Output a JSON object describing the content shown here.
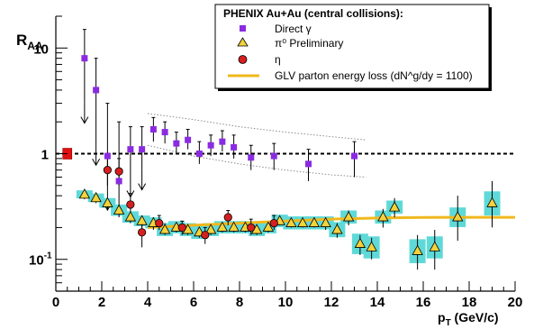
{
  "chart_data": {
    "type": "scatter",
    "title": "",
    "xlabel": "p_T (GeV/c)",
    "ylabel": "R_AA",
    "xlim": [
      0,
      20
    ],
    "ylim": [
      0.05,
      20
    ],
    "ylog": true,
    "grid": false,
    "legend_position": "top-right",
    "legend_title": "PHENIX Au+Au (central collisions):",
    "x_ticks": [
      "0",
      "2",
      "4",
      "6",
      "8",
      "10",
      "12",
      "14",
      "16",
      "18",
      "20"
    ],
    "y_ticks": [
      "10",
      "1",
      "10^-1"
    ],
    "reference_line": {
      "y": 1,
      "style": "dashed",
      "color": "#000000"
    },
    "normalization_box": {
      "x": 0.5,
      "y": 1,
      "color": "#e21010"
    },
    "series": [
      {
        "name": "Direct γ",
        "marker": "square",
        "color": "#8a2be2",
        "points": [
          {
            "x": 1.25,
            "y": 8.0,
            "lo": 3.0,
            "hi": 15.0,
            "arrow": true
          },
          {
            "x": 1.75,
            "y": 4.0,
            "lo": 1.2,
            "hi": 8.0,
            "arrow": true
          },
          {
            "x": 2.25,
            "y": 0.95,
            "lo": 0.45,
            "hi": 3.0,
            "arrow": true
          },
          {
            "x": 2.75,
            "y": 0.55,
            "lo": 0.3,
            "hi": 2.0
          },
          {
            "x": 3.25,
            "y": 1.1,
            "lo": 0.6,
            "hi": 1.8,
            "arrow": true
          },
          {
            "x": 3.75,
            "y": 1.1,
            "lo": 0.7,
            "hi": 1.8,
            "arrow": true
          },
          {
            "x": 4.25,
            "y": 1.7,
            "lo": 1.3,
            "hi": 2.2
          },
          {
            "x": 4.75,
            "y": 1.6,
            "lo": 1.25,
            "hi": 2.0
          },
          {
            "x": 5.25,
            "y": 1.25,
            "lo": 1.0,
            "hi": 1.6
          },
          {
            "x": 5.75,
            "y": 1.35,
            "lo": 1.1,
            "hi": 1.7
          },
          {
            "x": 6.25,
            "y": 1.0,
            "lo": 0.8,
            "hi": 1.3
          },
          {
            "x": 6.75,
            "y": 1.2,
            "lo": 0.95,
            "hi": 1.5
          },
          {
            "x": 7.25,
            "y": 1.3,
            "lo": 1.05,
            "hi": 1.65
          },
          {
            "x": 7.75,
            "y": 1.15,
            "lo": 0.9,
            "hi": 1.5
          },
          {
            "x": 8.5,
            "y": 0.92,
            "lo": 0.7,
            "hi": 1.2
          },
          {
            "x": 9.5,
            "y": 0.95,
            "lo": 0.7,
            "hi": 1.25
          },
          {
            "x": 11.0,
            "y": 0.8,
            "lo": 0.55,
            "hi": 1.1
          },
          {
            "x": 13.0,
            "y": 0.95,
            "lo": 0.6,
            "hi": 1.3
          }
        ]
      },
      {
        "name": "π⁰ Preliminary",
        "marker": "triangle",
        "color": "#f5d23a",
        "systematics_color": "#5fd9d8",
        "points": [
          {
            "x": 1.25,
            "y": 0.41,
            "lo": 0.37,
            "hi": 0.45,
            "sys": 0.04
          },
          {
            "x": 1.75,
            "y": 0.38,
            "lo": 0.34,
            "hi": 0.42,
            "sys": 0.04
          },
          {
            "x": 2.25,
            "y": 0.34,
            "lo": 0.3,
            "hi": 0.38,
            "sys": 0.04
          },
          {
            "x": 2.75,
            "y": 0.29,
            "lo": 0.25,
            "hi": 0.33,
            "sys": 0.04
          },
          {
            "x": 3.25,
            "y": 0.25,
            "lo": 0.22,
            "hi": 0.28,
            "sys": 0.035
          },
          {
            "x": 3.75,
            "y": 0.23,
            "lo": 0.2,
            "hi": 0.26,
            "sys": 0.03
          },
          {
            "x": 4.25,
            "y": 0.22,
            "lo": 0.19,
            "hi": 0.25,
            "sys": 0.03
          },
          {
            "x": 4.75,
            "y": 0.19,
            "lo": 0.17,
            "hi": 0.22,
            "sys": 0.03
          },
          {
            "x": 5.25,
            "y": 0.2,
            "lo": 0.18,
            "hi": 0.22,
            "sys": 0.03
          },
          {
            "x": 5.75,
            "y": 0.19,
            "lo": 0.17,
            "hi": 0.21,
            "sys": 0.03
          },
          {
            "x": 6.25,
            "y": 0.18,
            "lo": 0.16,
            "hi": 0.2,
            "sys": 0.03
          },
          {
            "x": 6.75,
            "y": 0.19,
            "lo": 0.17,
            "hi": 0.21,
            "sys": 0.03
          },
          {
            "x": 7.25,
            "y": 0.2,
            "lo": 0.18,
            "hi": 0.22,
            "sys": 0.03
          },
          {
            "x": 7.75,
            "y": 0.2,
            "lo": 0.18,
            "hi": 0.22,
            "sys": 0.03
          },
          {
            "x": 8.25,
            "y": 0.2,
            "lo": 0.18,
            "hi": 0.22,
            "sys": 0.03
          },
          {
            "x": 8.75,
            "y": 0.19,
            "lo": 0.17,
            "hi": 0.21,
            "sys": 0.03
          },
          {
            "x": 9.25,
            "y": 0.2,
            "lo": 0.18,
            "hi": 0.22,
            "sys": 0.03
          },
          {
            "x": 9.75,
            "y": 0.23,
            "lo": 0.21,
            "hi": 0.25,
            "sys": 0.035
          },
          {
            "x": 10.25,
            "y": 0.22,
            "lo": 0.2,
            "hi": 0.24,
            "sys": 0.035
          },
          {
            "x": 10.75,
            "y": 0.22,
            "lo": 0.2,
            "hi": 0.24,
            "sys": 0.035
          },
          {
            "x": 11.25,
            "y": 0.22,
            "lo": 0.2,
            "hi": 0.25,
            "sys": 0.035
          },
          {
            "x": 11.75,
            "y": 0.22,
            "lo": 0.19,
            "hi": 0.25,
            "sys": 0.035
          },
          {
            "x": 12.25,
            "y": 0.19,
            "lo": 0.16,
            "hi": 0.22,
            "sys": 0.035
          },
          {
            "x": 12.75,
            "y": 0.25,
            "lo": 0.21,
            "hi": 0.29,
            "sys": 0.04
          },
          {
            "x": 13.25,
            "y": 0.14,
            "lo": 0.11,
            "hi": 0.17,
            "sys": 0.035
          },
          {
            "x": 13.75,
            "y": 0.13,
            "lo": 0.1,
            "hi": 0.16,
            "sys": 0.035
          },
          {
            "x": 14.25,
            "y": 0.25,
            "lo": 0.2,
            "hi": 0.3,
            "sys": 0.04
          },
          {
            "x": 14.75,
            "y": 0.31,
            "lo": 0.25,
            "hi": 0.38,
            "sys": 0.05
          },
          {
            "x": 15.75,
            "y": 0.12,
            "lo": 0.08,
            "hi": 0.17,
            "sys": 0.035
          },
          {
            "x": 16.5,
            "y": 0.13,
            "lo": 0.08,
            "hi": 0.19,
            "sys": 0.035
          },
          {
            "x": 17.5,
            "y": 0.25,
            "lo": 0.15,
            "hi": 0.4,
            "sys": 0.06
          },
          {
            "x": 19.0,
            "y": 0.34,
            "lo": 0.2,
            "hi": 0.55,
            "sys": 0.1
          }
        ]
      },
      {
        "name": "η",
        "marker": "circle",
        "color": "#d61f1f",
        "points": [
          {
            "x": 2.25,
            "y": 0.7,
            "lo": 0.5,
            "hi": 0.95
          },
          {
            "x": 2.75,
            "y": 0.68,
            "lo": 0.5,
            "hi": 0.9
          },
          {
            "x": 3.25,
            "y": 0.33,
            "lo": 0.26,
            "hi": 0.42
          },
          {
            "x": 3.75,
            "y": 0.18,
            "lo": 0.13,
            "hi": 0.24
          },
          {
            "x": 4.5,
            "y": 0.22,
            "lo": 0.19,
            "hi": 0.26
          },
          {
            "x": 5.5,
            "y": 0.2,
            "lo": 0.17,
            "hi": 0.23
          },
          {
            "x": 6.5,
            "y": 0.17,
            "lo": 0.14,
            "hi": 0.2
          },
          {
            "x": 7.5,
            "y": 0.25,
            "lo": 0.21,
            "hi": 0.29
          },
          {
            "x": 8.5,
            "y": 0.2,
            "lo": 0.17,
            "hi": 0.24
          },
          {
            "x": 9.5,
            "y": 0.22,
            "lo": 0.19,
            "hi": 0.26
          }
        ]
      },
      {
        "name": "GLV parton energy loss (dN^g/dy = 1100)",
        "marker": "line",
        "color": "#f0b81c",
        "points": [
          {
            "x": 4.0,
            "y": 0.2
          },
          {
            "x": 5.0,
            "y": 0.205
          },
          {
            "x": 6.0,
            "y": 0.21
          },
          {
            "x": 7.0,
            "y": 0.215
          },
          {
            "x": 8.0,
            "y": 0.22
          },
          {
            "x": 9.0,
            "y": 0.225
          },
          {
            "x": 10.0,
            "y": 0.23
          },
          {
            "x": 11.0,
            "y": 0.235
          },
          {
            "x": 12.0,
            "y": 0.24
          },
          {
            "x": 13.0,
            "y": 0.243
          },
          {
            "x": 14.0,
            "y": 0.246
          },
          {
            "x": 15.0,
            "y": 0.248
          },
          {
            "x": 16.0,
            "y": 0.249
          },
          {
            "x": 17.0,
            "y": 0.25
          },
          {
            "x": 18.0,
            "y": 0.25
          },
          {
            "x": 19.0,
            "y": 0.25
          },
          {
            "x": 20.0,
            "y": 0.25
          }
        ]
      }
    ],
    "gamma_band": {
      "color": "#8c8c8c",
      "upper": [
        {
          "x": 4,
          "y": 2.4
        },
        {
          "x": 6,
          "y": 2.1
        },
        {
          "x": 8,
          "y": 1.8
        },
        {
          "x": 10,
          "y": 1.6
        },
        {
          "x": 12,
          "y": 1.45
        },
        {
          "x": 13.5,
          "y": 1.35
        }
      ],
      "lower": [
        {
          "x": 4,
          "y": 1.2
        },
        {
          "x": 6,
          "y": 0.95
        },
        {
          "x": 8,
          "y": 0.8
        },
        {
          "x": 10,
          "y": 0.7
        },
        {
          "x": 12,
          "y": 0.63
        },
        {
          "x": 13.5,
          "y": 0.6
        }
      ]
    }
  }
}
